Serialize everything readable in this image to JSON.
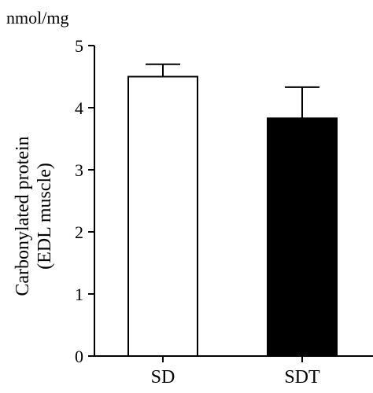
{
  "chart_data": {
    "type": "bar",
    "title": "",
    "unit_label": "nmol/mg",
    "ylabel_line1": "Carbonylated protein",
    "ylabel_line2": "(EDL muscle)",
    "xlabel": "",
    "categories": [
      "SD",
      "SDT"
    ],
    "values": [
      4.5,
      3.83
    ],
    "errors": [
      0.2,
      0.5
    ],
    "bar_colors": [
      "#ffffff",
      "#000000"
    ],
    "ylim": [
      0,
      5
    ],
    "yticks": [
      0,
      1,
      2,
      3,
      4,
      5
    ],
    "grid": false,
    "legend": "none"
  }
}
